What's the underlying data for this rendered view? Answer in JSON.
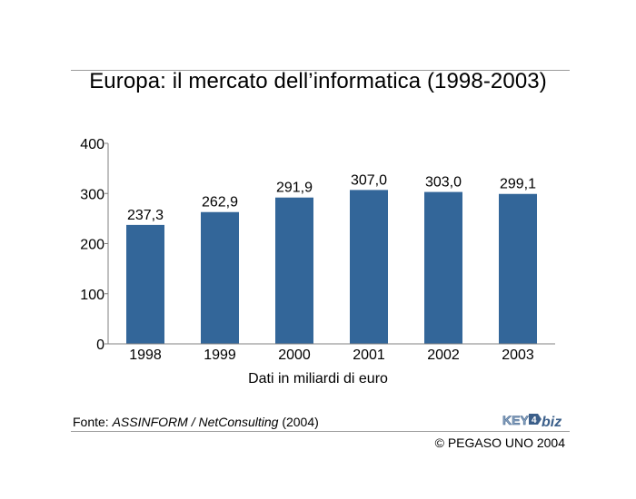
{
  "title": "Europa: il mercato dell’informatica (1998-2003)",
  "source": {
    "prefix": "Fonte: ",
    "org": "ASSINFORM / NetConsulting",
    "year": " (2004)"
  },
  "copyright": "© PEGASO UNO 2004",
  "logo": {
    "icon": "key4biz-logo",
    "text": "KEY4biz"
  },
  "colors": {
    "bar": "#336699",
    "axis": "#808080",
    "rule": "#9a9a9a"
  },
  "chart_data": {
    "type": "bar",
    "title": "Europa: il mercato dell’informatica (1998-2003)",
    "xlabel": "Dati in miliardi di euro",
    "ylabel": "",
    "categories": [
      "1998",
      "1999",
      "2000",
      "2001",
      "2002",
      "2003"
    ],
    "values": [
      237.3,
      262.9,
      291.9,
      307.0,
      303.0,
      299.1
    ],
    "value_labels": [
      "237,3",
      "262,9",
      "291,9",
      "307,0",
      "303,0",
      "299,1"
    ],
    "ylim": [
      0,
      400
    ],
    "yticks": [
      0,
      100,
      200,
      300,
      400
    ],
    "grid": false,
    "legend": "none"
  }
}
